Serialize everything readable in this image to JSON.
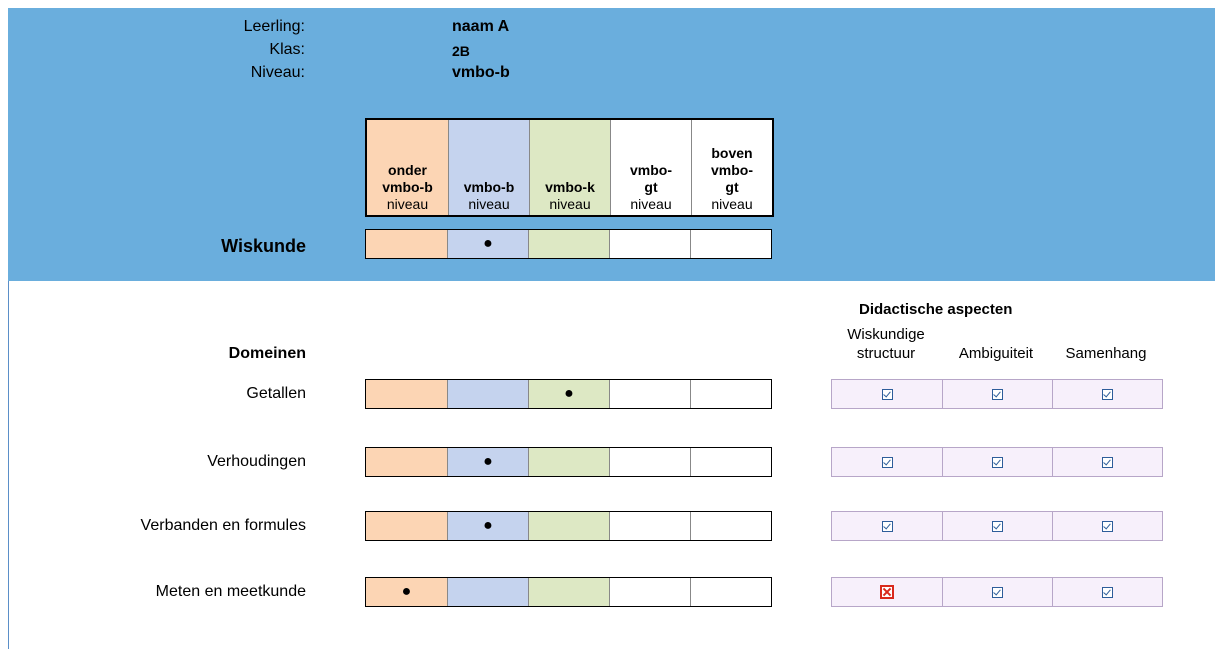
{
  "student": {
    "labels": [
      "Leerling:",
      "Klas:",
      "Niveau:"
    ],
    "values": [
      "naam A",
      "2B",
      "vmbo-b"
    ]
  },
  "levels": [
    {
      "line1": "",
      "line2": "onder",
      "line3": "vmbo-b",
      "line4": "niveau",
      "color": "#fcd5b4"
    },
    {
      "line1": "",
      "line2": "",
      "line3": "vmbo-b",
      "line4": "niveau",
      "color": "#c5d3ee"
    },
    {
      "line1": "",
      "line2": "",
      "line3": "vmbo-k",
      "line4": "niveau",
      "color": "#dde8c4"
    },
    {
      "line1": "",
      "line2": "vmbo-",
      "line3": "gt",
      "line4": "niveau",
      "color": "#ffffff"
    },
    {
      "line1": "boven",
      "line2": "vmbo-",
      "line3": "gt",
      "line4": "niveau",
      "color": "#ffffff"
    }
  ],
  "subject": {
    "label": "Wiskunde",
    "level_index": 1,
    "marker": "●"
  },
  "domains": {
    "heading": "Domeinen",
    "rows": [
      {
        "label": "Getallen",
        "level_index": 2,
        "checks": [
          "check",
          "check",
          "check"
        ]
      },
      {
        "label": "Verhoudingen",
        "level_index": 1,
        "checks": [
          "check",
          "check",
          "check"
        ]
      },
      {
        "label": "Verbanden en formules",
        "level_index": 1,
        "checks": [
          "check",
          "check",
          "check"
        ]
      },
      {
        "label": "Meten en meetkunde",
        "level_index": 0,
        "checks": [
          "cross",
          "check",
          "check"
        ]
      }
    ]
  },
  "didactic": {
    "heading": "Didactische aspecten",
    "columns": [
      {
        "line1": "Wiskundige",
        "line2": "structuur"
      },
      {
        "line1": "",
        "line2": "Ambiguiteit"
      },
      {
        "line1": "",
        "line2": "Samenhang"
      }
    ]
  },
  "icons": {
    "check": "checkbox-checked-icon",
    "cross": "checkbox-cross-icon"
  }
}
